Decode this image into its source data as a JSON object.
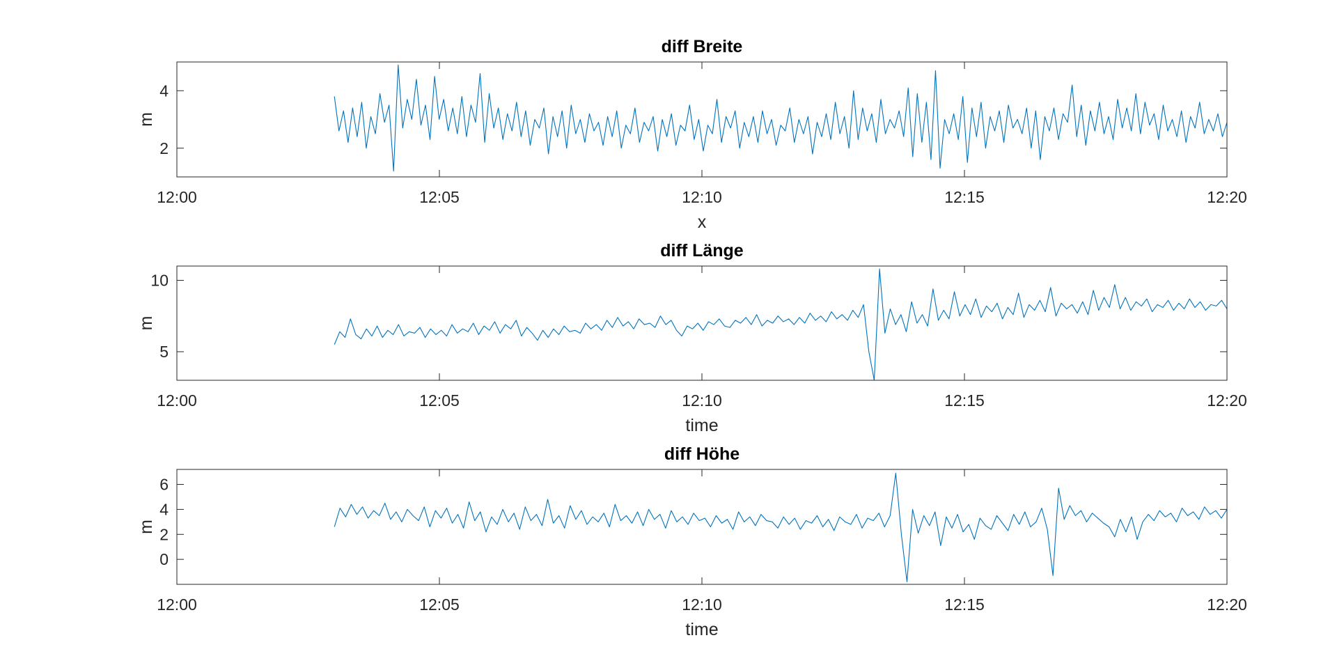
{
  "figure": {
    "background": "#ffffff",
    "line_color": "#0072bd",
    "axis_color": "#262626"
  },
  "chart_data": [
    {
      "type": "line",
      "title": "diff Breite",
      "xlabel": "x",
      "ylabel": "m",
      "xlim": [
        "12:00",
        "12:20"
      ],
      "xticks": [
        "12:00",
        "12:05",
        "12:10",
        "12:15",
        "12:20"
      ],
      "ylim": [
        1,
        5
      ],
      "yticks": [
        2,
        4
      ],
      "grid": false,
      "series": [
        {
          "x_start": "12:03",
          "x_end": "12:20",
          "values": [
            3.8,
            2.6,
            3.3,
            2.2,
            3.4,
            2.4,
            3.6,
            2.0,
            3.1,
            2.5,
            3.9,
            2.9,
            3.5,
            1.2,
            4.9,
            2.7,
            3.7,
            3.0,
            4.4,
            2.8,
            3.5,
            2.3,
            4.5,
            3.0,
            3.7,
            2.6,
            3.4,
            2.5,
            3.8,
            2.4,
            3.5,
            2.9,
            4.6,
            2.2,
            3.9,
            2.7,
            3.4,
            2.3,
            3.2,
            2.6,
            3.6,
            2.4,
            3.3,
            2.1,
            3.0,
            2.7,
            3.4,
            1.8,
            3.1,
            2.4,
            3.3,
            2.0,
            3.5,
            2.5,
            3.0,
            2.2,
            3.2,
            2.6,
            2.9,
            2.1,
            3.1,
            2.4,
            3.3,
            2.0,
            2.8,
            2.5,
            3.4,
            2.2,
            2.9,
            2.6,
            3.1,
            1.9,
            3.0,
            2.4,
            3.2,
            2.1,
            2.8,
            2.6,
            3.5,
            2.3,
            3.0,
            1.9,
            2.8,
            2.5,
            3.7,
            2.2,
            3.1,
            2.7,
            3.3,
            2.0,
            2.9,
            2.4,
            3.1,
            2.2,
            3.3,
            2.5,
            3.0,
            2.1,
            2.8,
            2.6,
            3.4,
            2.2,
            3.0,
            2.5,
            3.1,
            1.8,
            2.9,
            2.4,
            3.2,
            2.3,
            3.6,
            2.5,
            3.1,
            2.0,
            4.0,
            2.3,
            3.4,
            2.6,
            3.2,
            2.2,
            3.7,
            2.5,
            3.0,
            2.7,
            3.3,
            2.4,
            4.1,
            1.7,
            3.9,
            2.2,
            3.6,
            1.6,
            4.7,
            1.3,
            3.0,
            2.5,
            3.2,
            2.3,
            3.8,
            1.5,
            3.4,
            2.4,
            3.6,
            2.0,
            3.1,
            2.6,
            3.3,
            2.2,
            3.5,
            2.7,
            3.0,
            2.5,
            3.4,
            2.0,
            3.3,
            1.6,
            3.1,
            2.6,
            3.4,
            2.3,
            3.2,
            2.9,
            4.2,
            2.4,
            3.5,
            2.1,
            3.3,
            2.6,
            3.6,
            2.5,
            3.1,
            2.3,
            3.7,
            2.7,
            3.4,
            2.6,
            3.9,
            2.5,
            3.6,
            2.8,
            3.2,
            2.3,
            3.5,
            2.6,
            3.0,
            2.4,
            3.3,
            2.2,
            3.1,
            2.7,
            3.6,
            2.5,
            3.0,
            2.6,
            3.2,
            2.4,
            2.9
          ]
        }
      ]
    },
    {
      "type": "line",
      "title": "diff Länge",
      "xlabel": "time",
      "ylabel": "m",
      "xlim": [
        "12:00",
        "12:20"
      ],
      "xticks": [
        "12:00",
        "12:05",
        "12:10",
        "12:15",
        "12:20"
      ],
      "ylim": [
        3,
        11
      ],
      "yticks": [
        5,
        10
      ],
      "grid": false,
      "series": [
        {
          "x_start": "12:03",
          "x_end": "12:20",
          "values": [
            5.5,
            6.4,
            6.0,
            7.3,
            6.2,
            5.9,
            6.6,
            6.1,
            6.8,
            6.0,
            6.5,
            6.2,
            6.9,
            6.1,
            6.4,
            6.3,
            6.7,
            6.0,
            6.6,
            6.2,
            6.5,
            6.1,
            6.9,
            6.3,
            6.6,
            6.4,
            7.0,
            6.2,
            6.8,
            6.5,
            7.1,
            6.3,
            6.9,
            6.6,
            7.2,
            6.1,
            6.7,
            6.3,
            5.8,
            6.5,
            6.0,
            6.6,
            6.2,
            6.8,
            6.4,
            6.5,
            6.3,
            7.0,
            6.6,
            6.9,
            6.5,
            7.2,
            6.7,
            7.4,
            6.8,
            7.1,
            6.6,
            7.3,
            6.9,
            7.0,
            6.7,
            7.5,
            6.9,
            7.2,
            6.5,
            6.1,
            6.8,
            6.6,
            7.0,
            6.5,
            7.1,
            6.9,
            7.3,
            6.8,
            6.7,
            7.2,
            7.0,
            7.4,
            6.9,
            7.6,
            6.8,
            7.2,
            7.0,
            7.5,
            7.1,
            7.3,
            6.9,
            7.4,
            7.0,
            7.7,
            7.2,
            7.5,
            7.1,
            7.8,
            7.3,
            7.6,
            7.2,
            7.9,
            7.4,
            8.3,
            5.0,
            3.0,
            10.8,
            6.3,
            8.0,
            6.9,
            7.6,
            6.4,
            8.5,
            7.0,
            7.6,
            6.8,
            9.4,
            7.2,
            7.9,
            7.3,
            9.2,
            7.5,
            8.3,
            7.6,
            8.7,
            7.4,
            8.2,
            7.8,
            8.4,
            7.3,
            8.1,
            7.6,
            9.1,
            7.4,
            8.3,
            7.9,
            8.6,
            7.8,
            9.5,
            7.5,
            8.4,
            8.0,
            8.3,
            7.7,
            8.5,
            7.6,
            9.3,
            7.9,
            8.8,
            8.1,
            9.7,
            8.0,
            8.8,
            7.9,
            8.5,
            8.2,
            8.7,
            7.8,
            8.3,
            8.1,
            8.6,
            7.9,
            8.4,
            8.0,
            8.7,
            8.1,
            8.5,
            7.9,
            8.3,
            8.2,
            8.6,
            8.0
          ]
        }
      ]
    },
    {
      "type": "line",
      "title": "diff Höhe",
      "xlabel": "time",
      "ylabel": "m",
      "xlim": [
        "12:00",
        "12:20"
      ],
      "xticks": [
        "12:00",
        "12:05",
        "12:10",
        "12:15",
        "12:20"
      ],
      "ylim": [
        -2,
        7.2
      ],
      "yticks": [
        0,
        2,
        4,
        6
      ],
      "grid": false,
      "series": [
        {
          "x_start": "12:03",
          "x_end": "12:20",
          "values": [
            2.6,
            4.1,
            3.4,
            4.4,
            3.6,
            4.2,
            3.3,
            3.9,
            3.5,
            4.5,
            3.2,
            3.8,
            3.0,
            4.0,
            3.5,
            3.1,
            4.2,
            2.6,
            3.9,
            3.3,
            4.1,
            2.9,
            3.6,
            2.5,
            4.6,
            3.1,
            3.8,
            2.2,
            3.4,
            2.8,
            4.0,
            3.0,
            3.7,
            2.4,
            4.2,
            3.1,
            3.6,
            2.7,
            4.8,
            2.9,
            3.5,
            2.5,
            4.3,
            3.2,
            3.9,
            2.8,
            3.4,
            3.0,
            3.7,
            2.6,
            4.4,
            3.1,
            3.5,
            2.9,
            3.8,
            2.7,
            4.0,
            3.2,
            3.6,
            2.5,
            3.9,
            3.0,
            3.4,
            2.8,
            3.7,
            3.1,
            3.3,
            2.6,
            3.5,
            2.9,
            3.2,
            2.4,
            3.8,
            3.0,
            3.4,
            2.7,
            3.6,
            3.1,
            3.0,
            2.5,
            3.4,
            2.8,
            3.3,
            2.4,
            3.1,
            2.9,
            3.5,
            2.6,
            3.2,
            2.3,
            3.4,
            3.0,
            2.8,
            3.6,
            2.5,
            3.3,
            3.1,
            3.7,
            2.6,
            3.5,
            6.9,
            2.0,
            -1.8,
            4.0,
            2.1,
            3.5,
            2.7,
            3.8,
            1.1,
            3.4,
            2.5,
            3.6,
            2.2,
            2.8,
            1.6,
            3.3,
            2.7,
            2.4,
            3.5,
            2.9,
            2.3,
            3.6,
            2.8,
            3.8,
            2.6,
            3.0,
            4.1,
            2.4,
            -1.3,
            5.7,
            3.2,
            4.3,
            3.5,
            3.9,
            3.0,
            3.7,
            3.3,
            2.9,
            2.6,
            1.8,
            3.2,
            2.2,
            3.4,
            1.6,
            3.0,
            3.6,
            3.1,
            3.9,
            3.4,
            3.7,
            3.0,
            4.1,
            3.5,
            3.8,
            3.2,
            4.2,
            3.6,
            3.9,
            3.3,
            4.0
          ]
        }
      ]
    }
  ]
}
